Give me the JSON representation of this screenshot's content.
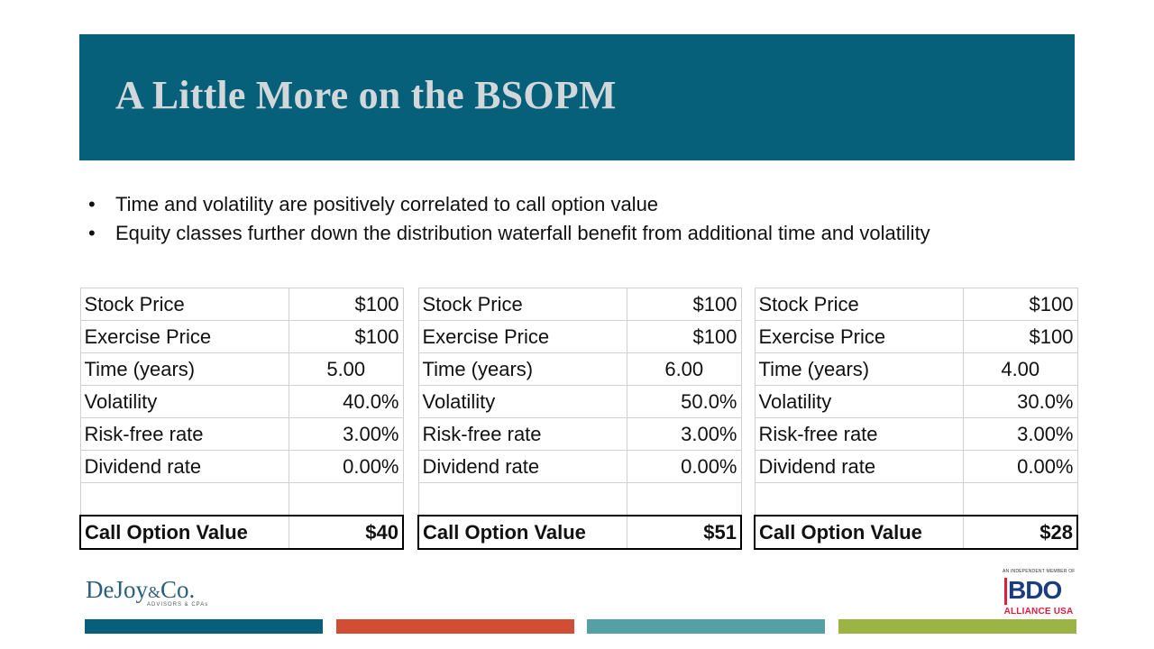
{
  "slide": {
    "title": "A Little More on the BSOPM",
    "bullets": [
      "Time and volatility are positively correlated to call option value",
      "Equity classes further down the distribution waterfall benefit from additional time and volatility"
    ],
    "bullet_glyph": "•"
  },
  "tables": [
    {
      "rows": [
        {
          "label": "Stock Price",
          "value": "$100"
        },
        {
          "label": "Exercise Price",
          "value": "$100"
        },
        {
          "label": "Time (years)",
          "value": "5.00"
        },
        {
          "label": "Volatility",
          "value": "40.0%"
        },
        {
          "label": "Risk-free rate",
          "value": "3.00%"
        },
        {
          "label": "Dividend rate",
          "value": "0.00%"
        }
      ],
      "result_label": "Call Option Value",
      "result_value": "$40"
    },
    {
      "rows": [
        {
          "label": "Stock Price",
          "value": "$100"
        },
        {
          "label": "Exercise Price",
          "value": "$100"
        },
        {
          "label": "Time (years)",
          "value": "6.00"
        },
        {
          "label": "Volatility",
          "value": "50.0%"
        },
        {
          "label": "Risk-free rate",
          "value": "3.00%"
        },
        {
          "label": "Dividend rate",
          "value": "0.00%"
        }
      ],
      "result_label": "Call Option Value",
      "result_value": "$51"
    },
    {
      "rows": [
        {
          "label": "Stock Price",
          "value": "$100"
        },
        {
          "label": "Exercise Price",
          "value": "$100"
        },
        {
          "label": "Time (years)",
          "value": "4.00"
        },
        {
          "label": "Volatility",
          "value": "30.0%"
        },
        {
          "label": "Risk-free rate",
          "value": "3.00%"
        },
        {
          "label": "Dividend rate",
          "value": "0.00%"
        }
      ],
      "result_label": "Call Option Value",
      "result_value": "$28"
    }
  ],
  "logos": {
    "dejoy_main": "DeJoy",
    "dejoy_amp": "&",
    "dejoy_co": "Co.",
    "dejoy_sub": "ADVISORS & CPAs",
    "bdo_member": "AN INDEPENDENT MEMBER OF",
    "bdo_mark": "BDO",
    "bdo_alliance": "ALLIANCE USA"
  },
  "colors": {
    "title_band": "#06607a",
    "strip_1": "#075f7b",
    "strip_2": "#d14d34",
    "strip_3": "#54a0a4",
    "strip_4": "#9bb443"
  }
}
